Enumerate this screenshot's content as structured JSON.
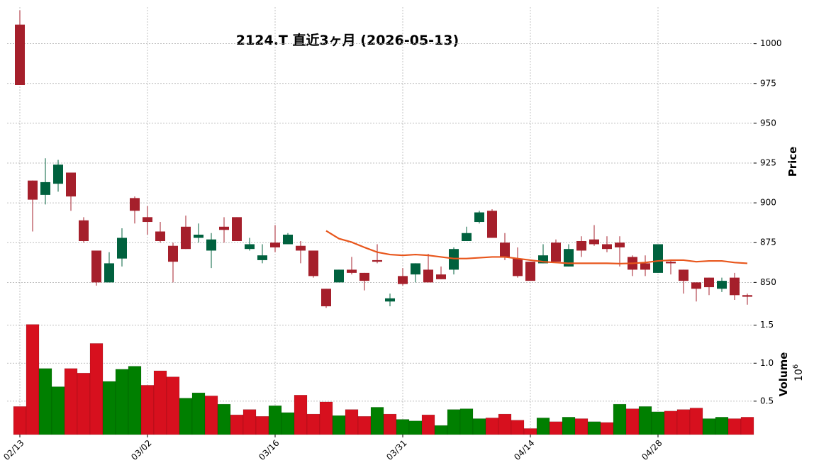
{
  "chart_data": {
    "type": "candlestick",
    "title": "2124.T 直近3ヶ月 (2026-05-13)",
    "categories": [
      "02/13",
      null,
      null,
      null,
      null,
      null,
      null,
      null,
      null,
      null,
      "03/02",
      null,
      null,
      null,
      null,
      null,
      null,
      null,
      null,
      null,
      "03/16",
      null,
      null,
      null,
      null,
      null,
      null,
      null,
      null,
      null,
      "03/31",
      null,
      null,
      null,
      null,
      null,
      null,
      null,
      null,
      null,
      "04/14",
      null,
      null,
      null,
      null,
      null,
      null,
      null,
      null,
      null,
      "04/28",
      null,
      null,
      null,
      null,
      null,
      null,
      null
    ],
    "open": [
      1012,
      914,
      905,
      912,
      919,
      889,
      870,
      850,
      865,
      903,
      891,
      882,
      873,
      885,
      878,
      870,
      885,
      891,
      871,
      864,
      875,
      874,
      873,
      870,
      846,
      850,
      858,
      856,
      864,
      838,
      854,
      855,
      858,
      855,
      858,
      876,
      888,
      895,
      875,
      865,
      863,
      862,
      875,
      860,
      876,
      877,
      874,
      875,
      866,
      862,
      856,
      863,
      858,
      850,
      853,
      846,
      853,
      842
    ],
    "high": [
      1021,
      914,
      928,
      927,
      919,
      891,
      870,
      869,
      884,
      904,
      898,
      888,
      875,
      892,
      887,
      881,
      891,
      891,
      878,
      874,
      886,
      881,
      876,
      870,
      846,
      858,
      866,
      856,
      874,
      843,
      859,
      862,
      868,
      860,
      872,
      885,
      895,
      896,
      881,
      872,
      863,
      874,
      877,
      874,
      879,
      886,
      879,
      879,
      867,
      867,
      874,
      864,
      858,
      850,
      853,
      853,
      856,
      843
    ],
    "low": [
      974,
      882,
      899,
      907,
      895,
      875,
      848,
      850,
      860,
      887,
      880,
      875,
      850,
      871,
      875,
      859,
      875,
      876,
      870,
      862,
      869,
      874,
      862,
      853,
      834,
      850,
      855,
      845,
      862,
      835,
      848,
      850,
      850,
      852,
      855,
      876,
      887,
      878,
      864,
      853,
      851,
      862,
      863,
      860,
      866,
      873,
      869,
      860,
      854,
      854,
      856,
      855,
      843,
      838,
      842,
      844,
      839,
      836
    ],
    "close": [
      974,
      902,
      913,
      924,
      904,
      876,
      850,
      862,
      878,
      895,
      888,
      876,
      863,
      871,
      880,
      877,
      883,
      876,
      874,
      867,
      872,
      880,
      870,
      854,
      835,
      858,
      856,
      851,
      863,
      840,
      849,
      862,
      850,
      852,
      871,
      881,
      894,
      878,
      866,
      854,
      851,
      867,
      863,
      871,
      870,
      874,
      871,
      872,
      858,
      858,
      874,
      862,
      851,
      846,
      847,
      851,
      842,
      841
    ],
    "up_color": "#00613e",
    "down_color": "#a51f2b",
    "ylim": [
      831,
      1023
    ],
    "yticks": [
      850,
      875,
      900,
      925,
      950,
      975,
      1000
    ],
    "ylabel": "Price",
    "grid": true,
    "moving_average": {
      "color": "#e8561c",
      "values": [
        null,
        null,
        null,
        null,
        null,
        null,
        null,
        null,
        null,
        null,
        null,
        null,
        null,
        null,
        null,
        null,
        null,
        null,
        null,
        null,
        null,
        null,
        null,
        null,
        882.4,
        877.5,
        875.3,
        872,
        869,
        867.5,
        867,
        867.5,
        867,
        866,
        865,
        865,
        865.5,
        866,
        866,
        865,
        864,
        863,
        862.5,
        862,
        862,
        862,
        862,
        861.8,
        862,
        862.5,
        863.5,
        864,
        864,
        863,
        863.5,
        863.5,
        862.5,
        862
      ]
    },
    "volume": {
      "values": [
        0.43,
        1.51,
        0.93,
        0.69,
        0.93,
        0.87,
        1.26,
        0.76,
        0.92,
        0.96,
        0.71,
        0.9,
        0.82,
        0.54,
        0.61,
        0.57,
        0.46,
        0.32,
        0.39,
        0.3,
        0.44,
        0.35,
        0.58,
        0.33,
        0.49,
        0.31,
        0.39,
        0.3,
        0.42,
        0.33,
        0.26,
        0.24,
        0.32,
        0.18,
        0.39,
        0.4,
        0.27,
        0.28,
        0.33,
        0.25,
        0.14,
        0.28,
        0.23,
        0.29,
        0.27,
        0.23,
        0.22,
        0.46,
        0.4,
        0.43,
        0.36,
        0.37,
        0.39,
        0.41,
        0.27,
        0.29,
        0.27,
        0.29
      ],
      "up_color": "#007f00",
      "down_color": "#d7101e",
      "ylim": [
        0.06,
        1.6
      ],
      "yticks": [
        0.5,
        {
          "value": 1,
          "label": "1.0"
        },
        1.5
      ],
      "ylabel": "Volume",
      "offset_label": {
        "base": "10",
        "exponent": "6"
      }
    }
  }
}
